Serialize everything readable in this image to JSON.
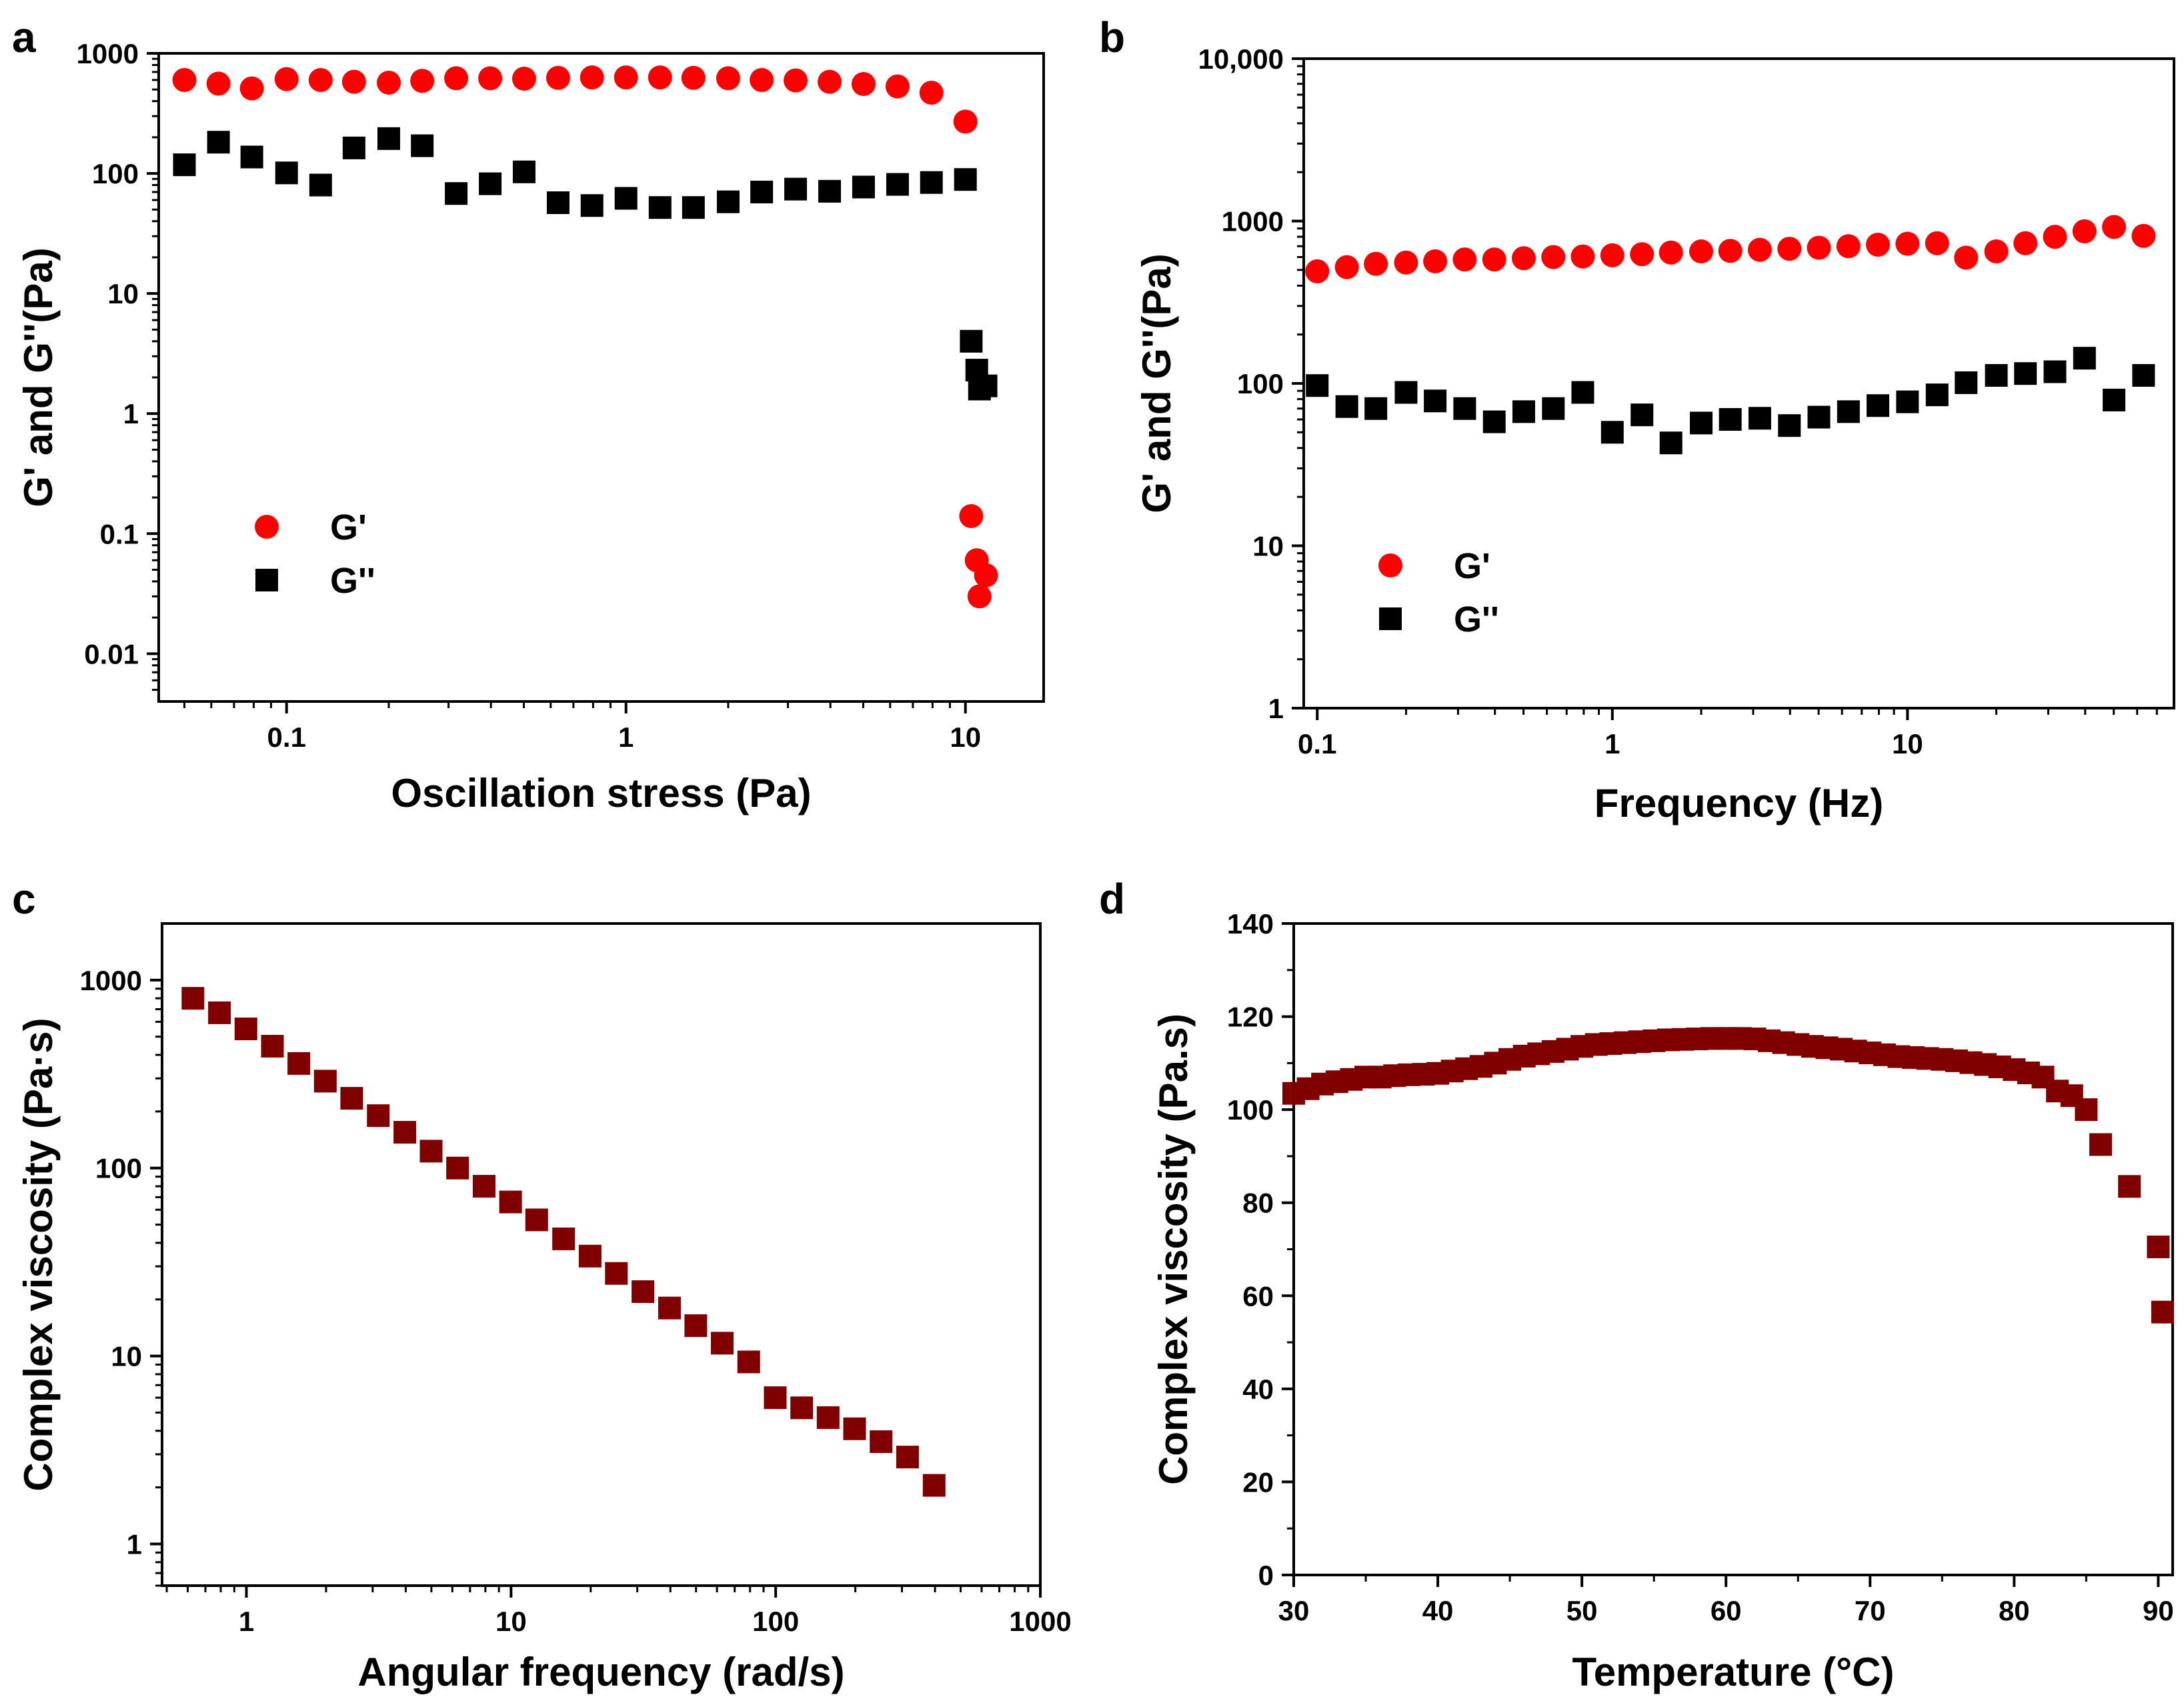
{
  "colors": {
    "g_prime": "#ff0000",
    "g_double_prime": "#000000",
    "viscosity": "#800000"
  },
  "chart_data": [
    {
      "panel": "a",
      "type": "scatter",
      "xscale": "log",
      "yscale": "log",
      "xlabel": "Oscillation stress (Pa)",
      "ylabel": "G' and G''(Pa)",
      "xlim": [
        0.042,
        17
      ],
      "ylim": [
        0.004,
        1000
      ],
      "xticks": [
        {
          "v": 0.1,
          "label": "0.1"
        },
        {
          "v": 1,
          "label": "1"
        },
        {
          "v": 10,
          "label": "10"
        }
      ],
      "yticks": [
        {
          "v": 0.01,
          "label": "0.01"
        },
        {
          "v": 0.1,
          "label": "0.1"
        },
        {
          "v": 1,
          "label": "1"
        },
        {
          "v": 10,
          "label": "10"
        },
        {
          "v": 100,
          "label": "100"
        },
        {
          "v": 1000,
          "label": "1000"
        }
      ],
      "legend": {
        "position": "lower-left",
        "entries": [
          "G'",
          "G''"
        ]
      },
      "series": [
        {
          "name": "G'",
          "marker": "circle",
          "color": "#ff0000",
          "x": [
            0.05,
            0.063,
            0.079,
            0.1,
            0.126,
            0.158,
            0.2,
            0.251,
            0.316,
            0.398,
            0.501,
            0.631,
            0.794,
            1.0,
            1.26,
            1.58,
            2.0,
            2.51,
            3.16,
            3.98,
            5.01,
            6.31,
            7.94,
            10.0,
            10.4,
            10.8,
            11.0,
            11.5
          ],
          "y": [
            600,
            560,
            510,
            610,
            600,
            580,
            570,
            590,
            620,
            620,
            615,
            625,
            630,
            630,
            630,
            625,
            620,
            600,
            595,
            580,
            555,
            530,
            470,
            270,
            0.14,
            0.06,
            0.03,
            0.045
          ]
        },
        {
          "name": "G''",
          "marker": "square",
          "color": "#000000",
          "x": [
            0.05,
            0.063,
            0.079,
            0.1,
            0.126,
            0.158,
            0.2,
            0.251,
            0.316,
            0.398,
            0.501,
            0.631,
            0.794,
            1.0,
            1.26,
            1.58,
            2.0,
            2.51,
            3.16,
            3.98,
            5.01,
            6.31,
            7.94,
            10.0,
            10.4,
            10.8,
            11.0,
            11.5
          ],
          "y": [
            118,
            182,
            137,
            101,
            80,
            163,
            195,
            170,
            68,
            82,
            103,
            57,
            54,
            62,
            52,
            52,
            58,
            70,
            74,
            71,
            77,
            81,
            84,
            89,
            4.0,
            2.3,
            1.6,
            1.7
          ]
        }
      ]
    },
    {
      "panel": "b",
      "type": "scatter",
      "xscale": "log",
      "yscale": "log",
      "xlabel": "Frequency (Hz)",
      "ylabel": "G' and G''(Pa)",
      "xlim": [
        0.09,
        80
      ],
      "ylim": [
        1,
        10000
      ],
      "xticks": [
        {
          "v": 0.1,
          "label": "0.1"
        },
        {
          "v": 1,
          "label": "1"
        },
        {
          "v": 10,
          "label": "10"
        }
      ],
      "yticks": [
        {
          "v": 1,
          "label": "1"
        },
        {
          "v": 10,
          "label": "10"
        },
        {
          "v": 100,
          "label": "100"
        },
        {
          "v": 1000,
          "label": "1000"
        },
        {
          "v": 10000,
          "label": "10,000"
        }
      ],
      "legend": {
        "position": "lower-left",
        "entries": [
          "G'",
          "G''"
        ]
      },
      "series": [
        {
          "name": "G'",
          "marker": "circle",
          "color": "#ff0000",
          "x": [
            0.1,
            0.126,
            0.158,
            0.2,
            0.251,
            0.316,
            0.398,
            0.501,
            0.631,
            0.794,
            1.0,
            1.26,
            1.58,
            2.0,
            2.51,
            3.16,
            3.98,
            5.01,
            6.31,
            7.94,
            10.0,
            12.6,
            15.8,
            20.0,
            25.1,
            31.6,
            39.8,
            50.1,
            63.1
          ],
          "y": [
            490,
            520,
            545,
            555,
            565,
            580,
            580,
            590,
            600,
            605,
            615,
            625,
            640,
            650,
            655,
            665,
            675,
            685,
            700,
            715,
            725,
            730,
            595,
            650,
            730,
            800,
            865,
            920,
            810
          ]
        },
        {
          "name": "G''",
          "marker": "square",
          "color": "#000000",
          "x": [
            0.1,
            0.126,
            0.158,
            0.2,
            0.251,
            0.316,
            0.398,
            0.501,
            0.631,
            0.794,
            1.0,
            1.26,
            1.58,
            2.0,
            2.51,
            3.16,
            3.98,
            5.01,
            6.31,
            7.94,
            10.0,
            12.6,
            15.8,
            20.0,
            25.1,
            31.6,
            39.8,
            50.1,
            63.1
          ],
          "y": [
            97,
            72,
            70,
            88,
            78,
            70,
            58,
            67,
            70,
            88,
            50,
            64,
            43,
            57,
            60,
            61,
            55,
            62,
            67,
            73,
            77,
            85,
            101,
            112,
            115,
            118,
            143,
            79,
            112
          ]
        }
      ]
    },
    {
      "panel": "c",
      "type": "scatter",
      "xscale": "log",
      "yscale": "log",
      "xlabel": "Angular frequency (rad/s)",
      "ylabel": "Complex viscosity (Pa·s)",
      "xlim": [
        0.48,
        1000
      ],
      "ylim": [
        0.6,
        2000
      ],
      "xticks": [
        {
          "v": 1,
          "label": "1"
        },
        {
          "v": 10,
          "label": "10"
        },
        {
          "v": 100,
          "label": "100"
        },
        {
          "v": 1000,
          "label": "1000"
        }
      ],
      "yticks": [
        {
          "v": 1,
          "label": "1"
        },
        {
          "v": 10,
          "label": "10"
        },
        {
          "v": 100,
          "label": "100"
        },
        {
          "v": 1000,
          "label": "1000"
        }
      ],
      "series": [
        {
          "name": "Complex viscosity",
          "marker": "square",
          "color": "#800000",
          "x": [
            0.628,
            0.791,
            0.996,
            1.254,
            1.578,
            1.987,
            2.5,
            3.15,
            3.97,
            4.99,
            6.28,
            7.91,
            9.96,
            12.5,
            15.8,
            19.9,
            25.0,
            31.5,
            39.7,
            49.9,
            62.8,
            79.1,
            99.6,
            125.4,
            157.8,
            198.7,
            250.2,
            315,
            397
          ],
          "y": [
            800,
            670,
            550,
            445,
            360,
            290,
            235,
            190,
            155,
            123,
            100,
            80,
            66,
            53,
            42,
            34,
            27.5,
            22,
            18,
            14.5,
            11.7,
            9.3,
            6.0,
            5.3,
            4.7,
            4.1,
            3.5,
            2.9,
            2.05
          ]
        }
      ]
    },
    {
      "panel": "d",
      "type": "scatter",
      "xscale": "linear",
      "yscale": "linear",
      "xlabel": "Temperature (°C)",
      "ylabel": "Complex viscosity (Pa.s)",
      "xlim": [
        30,
        91
      ],
      "ylim": [
        0,
        140
      ],
      "xticks": [
        {
          "v": 30,
          "label": "30"
        },
        {
          "v": 40,
          "label": "40"
        },
        {
          "v": 50,
          "label": "50"
        },
        {
          "v": 60,
          "label": "60"
        },
        {
          "v": 70,
          "label": "70"
        },
        {
          "v": 80,
          "label": "80"
        },
        {
          "v": 90,
          "label": "90"
        }
      ],
      "yticks": [
        {
          "v": 0,
          "label": "0"
        },
        {
          "v": 20,
          "label": "20"
        },
        {
          "v": 40,
          "label": "40"
        },
        {
          "v": 60,
          "label": "60"
        },
        {
          "v": 80,
          "label": "80"
        },
        {
          "v": 100,
          "label": "100"
        },
        {
          "v": 120,
          "label": "120"
        },
        {
          "v": 140,
          "label": "140"
        }
      ],
      "series": [
        {
          "name": "Complex viscosity",
          "marker": "square",
          "color": "#800000",
          "x": [
            30,
            31,
            32,
            33,
            34,
            35,
            36,
            37,
            38,
            39,
            40,
            41,
            42,
            43,
            44,
            45,
            46,
            47,
            48,
            49,
            50,
            51,
            52,
            53,
            54,
            55,
            56,
            57,
            58,
            59,
            60,
            61,
            62,
            63,
            64,
            65,
            66,
            67,
            68,
            69,
            70,
            71,
            72,
            73,
            74,
            75,
            76,
            77,
            78,
            79,
            80,
            81,
            82,
            83,
            84,
            85,
            86,
            88,
            90,
            90.3
          ],
          "y": [
            103.5,
            104.5,
            105.5,
            106,
            106.5,
            107,
            107,
            107.3,
            107.5,
            107.6,
            107.8,
            108.3,
            108.8,
            109.3,
            110,
            110.8,
            111.5,
            112,
            112.5,
            113,
            113.6,
            114,
            114.2,
            114.4,
            114.6,
            114.8,
            115,
            115.1,
            115.2,
            115.3,
            115.3,
            115.3,
            115.2,
            114.8,
            114.4,
            114,
            113.6,
            113.3,
            113,
            112.6,
            112.2,
            111.8,
            111.4,
            111.2,
            111,
            110.8,
            110.5,
            110.1,
            109.7,
            109.2,
            108.6,
            107.9,
            107,
            104,
            103,
            100,
            92.5,
            83.5,
            70.5,
            56.5
          ]
        }
      ]
    }
  ]
}
